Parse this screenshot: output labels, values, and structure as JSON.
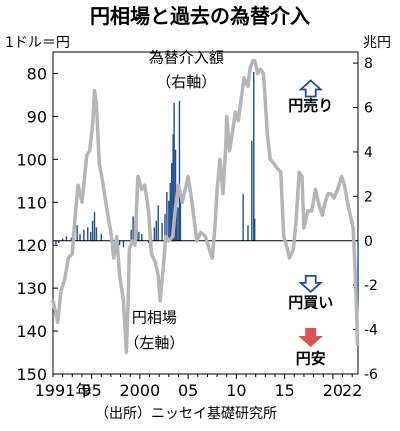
{
  "chart_data": {
    "type": "line",
    "title": "円相場と過去の為替介入",
    "source": "（出所）ニッセイ基礎研究所",
    "left_unit": "1ドル＝円",
    "right_unit": "兆円",
    "x_range": [
      1991,
      2022.6
    ],
    "x_ticks": [
      {
        "year": 1991,
        "label": "1991年"
      },
      {
        "year": 1995,
        "label": "95"
      },
      {
        "year": 2000,
        "label": "2000"
      },
      {
        "year": 2005,
        "label": "05"
      },
      {
        "year": 2010,
        "label": "10"
      },
      {
        "year": 2015,
        "label": "15"
      },
      {
        "year": 2020,
        "label": "20"
      },
      {
        "year": 2022,
        "label": "22"
      }
    ],
    "left_axis": {
      "ticks": [
        "80",
        "90",
        "100",
        "110",
        "120",
        "130",
        "140",
        "150"
      ],
      "range": [
        150,
        75
      ],
      "inverted": true
    },
    "right_axis": {
      "ticks": [
        "8",
        "6",
        "4",
        "2",
        "0",
        "-2",
        "-4",
        "-6"
      ],
      "range": [
        -6,
        8.5
      ]
    },
    "grid": false,
    "series": [
      {
        "name": "円相場",
        "axis": "left",
        "color": "#b5b5b5",
        "points": [
          [
            1991.0,
            133
          ],
          [
            1991.5,
            138
          ],
          [
            1991.8,
            131
          ],
          [
            1992.2,
            128
          ],
          [
            1992.6,
            123
          ],
          [
            1993.0,
            122
          ],
          [
            1993.3,
            113
          ],
          [
            1993.6,
            106
          ],
          [
            1994.0,
            110
          ],
          [
            1994.5,
            99
          ],
          [
            1994.8,
            98
          ],
          [
            1995.1,
            92
          ],
          [
            1995.3,
            84
          ],
          [
            1995.5,
            87
          ],
          [
            1995.8,
            101
          ],
          [
            1996.2,
            106
          ],
          [
            1996.6,
            112
          ],
          [
            1997.0,
            117
          ],
          [
            1997.3,
            123
          ],
          [
            1997.6,
            118
          ],
          [
            1997.9,
            127
          ],
          [
            1998.3,
            133
          ],
          [
            1998.6,
            145
          ],
          [
            1998.8,
            132
          ],
          [
            1998.9,
            121
          ],
          [
            1999.2,
            119
          ],
          [
            1999.5,
            120
          ],
          [
            1999.8,
            104
          ],
          [
            2000.2,
            107
          ],
          [
            2000.5,
            106
          ],
          [
            2000.9,
            112
          ],
          [
            2001.2,
            122
          ],
          [
            2001.6,
            124
          ],
          [
            2001.9,
            127
          ],
          [
            2002.1,
            133
          ],
          [
            2002.4,
            126
          ],
          [
            2002.7,
            118
          ],
          [
            2003.0,
            119
          ],
          [
            2003.4,
            118
          ],
          [
            2003.7,
            111
          ],
          [
            2004.0,
            106
          ],
          [
            2004.4,
            110
          ],
          [
            2004.8,
            106
          ],
          [
            2005.0,
            104
          ],
          [
            2005.4,
            110
          ],
          [
            2005.9,
            119
          ],
          [
            2006.3,
            117
          ],
          [
            2006.8,
            118
          ],
          [
            2007.2,
            121
          ],
          [
            2007.5,
            123
          ],
          [
            2007.8,
            115
          ],
          [
            2008.0,
            107
          ],
          [
            2008.3,
            100
          ],
          [
            2008.6,
            108
          ],
          [
            2008.9,
            97
          ],
          [
            2009.0,
            90
          ],
          [
            2009.3,
            98
          ],
          [
            2009.7,
            92
          ],
          [
            2009.9,
            89
          ],
          [
            2010.2,
            91
          ],
          [
            2010.5,
            86
          ],
          [
            2010.8,
            81
          ],
          [
            2011.0,
            82
          ],
          [
            2011.2,
            83
          ],
          [
            2011.4,
            79
          ],
          [
            2011.7,
            77
          ],
          [
            2011.9,
            77
          ],
          [
            2012.2,
            80
          ],
          [
            2012.5,
            79
          ],
          [
            2012.8,
            80
          ],
          [
            2012.95,
            85
          ],
          [
            2013.2,
            94
          ],
          [
            2013.5,
            100
          ],
          [
            2013.9,
            101
          ],
          [
            2014.2,
            102
          ],
          [
            2014.6,
            103
          ],
          [
            2014.9,
            118
          ],
          [
            2015.3,
            121
          ],
          [
            2015.5,
            123
          ],
          [
            2015.9,
            121
          ],
          [
            2016.2,
            114
          ],
          [
            2016.5,
            103
          ],
          [
            2016.8,
            104
          ],
          [
            2017.0,
            116
          ],
          [
            2017.4,
            112
          ],
          [
            2017.8,
            112
          ],
          [
            2018.2,
            107
          ],
          [
            2018.6,
            111
          ],
          [
            2018.9,
            113
          ],
          [
            2019.2,
            110
          ],
          [
            2019.5,
            108
          ],
          [
            2019.8,
            108
          ],
          [
            2020.1,
            109
          ],
          [
            2020.5,
            107
          ],
          [
            2020.9,
            104
          ],
          [
            2021.2,
            106
          ],
          [
            2021.5,
            110
          ],
          [
            2021.9,
            114
          ],
          [
            2022.1,
            116
          ],
          [
            2022.3,
            126
          ],
          [
            2022.45,
            135
          ],
          [
            2022.55,
            143
          ]
        ]
      },
      {
        "name": "為替介入額",
        "axis": "right",
        "color": "#1f4e8c",
        "type": "bar",
        "points": [
          [
            1991.3,
            -0.15
          ],
          [
            1991.6,
            -0.1
          ],
          [
            1992.0,
            0.1
          ],
          [
            1992.4,
            0.2
          ],
          [
            1992.9,
            0.15
          ],
          [
            1993.2,
            0.5
          ],
          [
            1993.5,
            0.7
          ],
          [
            1993.8,
            0.3
          ],
          [
            1994.2,
            0.5
          ],
          [
            1994.6,
            0.6
          ],
          [
            1994.9,
            0.4
          ],
          [
            1995.1,
            0.9
          ],
          [
            1995.3,
            1.3
          ],
          [
            1995.5,
            0.6
          ],
          [
            1996.0,
            0.3
          ],
          [
            1997.6,
            -0.3
          ],
          [
            1997.9,
            -0.2
          ],
          [
            1998.3,
            -0.3
          ],
          [
            1999.1,
            0.5
          ],
          [
            1999.3,
            1.1
          ],
          [
            1999.5,
            0.9
          ],
          [
            1999.7,
            1.2
          ],
          [
            1999.9,
            0.4
          ],
          [
            2000.2,
            0.3
          ],
          [
            2000.9,
            -0.1
          ],
          [
            2001.5,
            0.6
          ],
          [
            2001.7,
            0.9
          ],
          [
            2001.9,
            1.6
          ],
          [
            2002.3,
            0.8
          ],
          [
            2002.6,
            1.2
          ],
          [
            2002.8,
            2.2
          ],
          [
            2003.0,
            1.8
          ],
          [
            2003.15,
            2.6
          ],
          [
            2003.3,
            3.5
          ],
          [
            2003.45,
            4.8
          ],
          [
            2003.55,
            6.2
          ],
          [
            2003.7,
            4.1
          ],
          [
            2003.8,
            2.1
          ],
          [
            2003.95,
            1.5
          ],
          [
            2004.1,
            6.3
          ],
          [
            2004.2,
            2.0
          ],
          [
            2010.7,
            2.1
          ],
          [
            2011.2,
            0.7
          ],
          [
            2011.6,
            4.5
          ],
          [
            2011.8,
            7.6
          ],
          [
            2011.9,
            1.0
          ],
          [
            2022.6,
            -2.8
          ]
        ]
      }
    ],
    "annotations": [
      {
        "text": "為替介入額",
        "x": 2004.8,
        "yl": 77.5
      },
      {
        "text": "（右軸）",
        "x": 2004.8,
        "yl": 83.2
      },
      {
        "text": "円相場",
        "x": 2001.5,
        "yl": 138
      },
      {
        "text": "（左軸）",
        "x": 2001.5,
        "yl": 144
      },
      {
        "text": "円売り",
        "x": 2017.7,
        "yl": 88.6
      },
      {
        "text": "円買い",
        "x": 2017.7,
        "yl": 134.5
      },
      {
        "text": "円安",
        "x": 2017.7,
        "yl": 147.5
      }
    ]
  }
}
